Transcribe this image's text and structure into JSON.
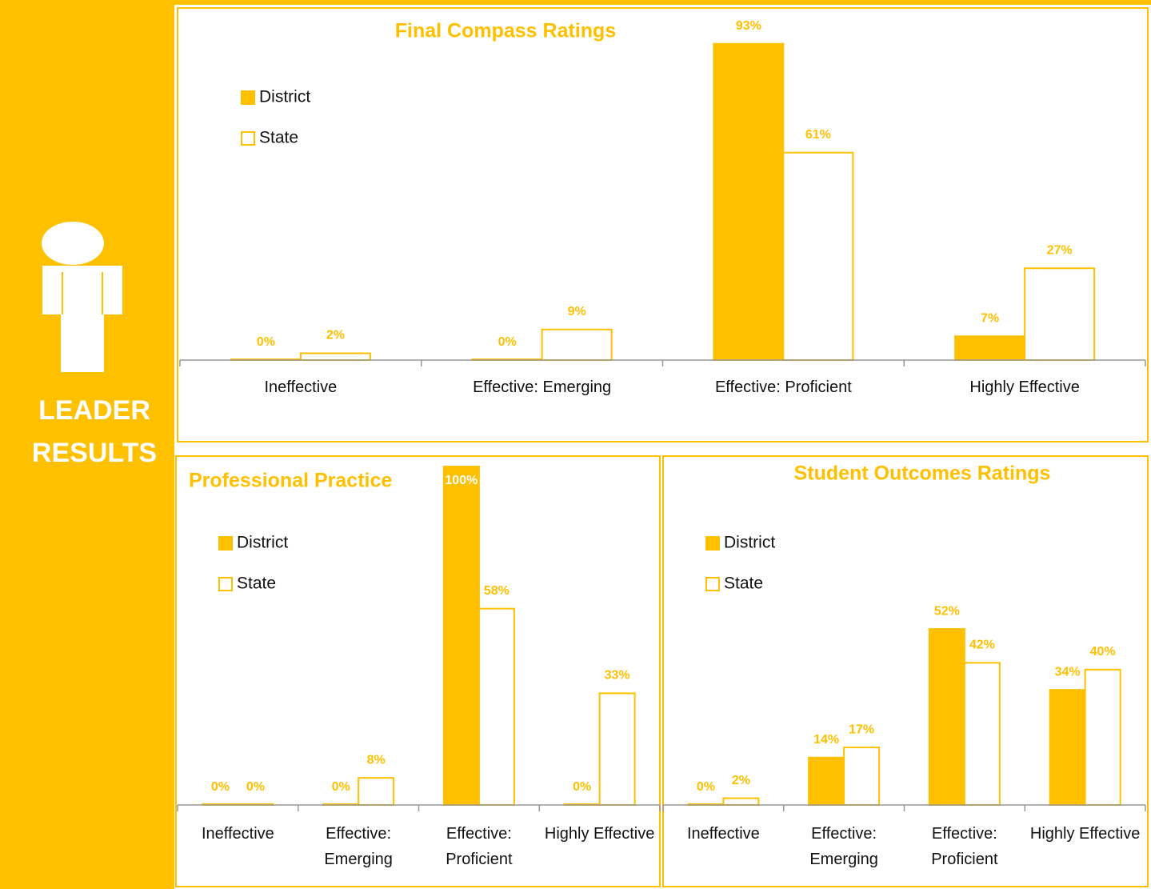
{
  "sidebar": {
    "title_lines": [
      "LEADER",
      "RESULTS"
    ]
  },
  "chart_data": [
    {
      "type": "bar",
      "title": "Final Compass Ratings",
      "categories": [
        "Ineffective",
        "Effective: Emerging",
        "Effective: Proficient",
        "Highly Effective"
      ],
      "series": [
        {
          "name": "District",
          "color": "#FFC000",
          "edgecolor": "#FFC000",
          "values": [
            0,
            0,
            93,
            7
          ],
          "value_labels": [
            "0%",
            "0%",
            "93%",
            "7%"
          ]
        },
        {
          "name": "State",
          "color": "#FFFFFF",
          "edgecolor": "#FFC000",
          "values": [
            2,
            9,
            61,
            27
          ],
          "value_labels": [
            "2%",
            "9%",
            "61%",
            "27%"
          ]
        }
      ],
      "ylim": [
        0,
        100
      ]
    },
    {
      "type": "bar",
      "title": "Professional Practice",
      "categories": [
        "Ineffective",
        "Effective: Emerging",
        "Effective: Proficient",
        "Highly Effective"
      ],
      "series": [
        {
          "name": "District",
          "color": "#FFC000",
          "edgecolor": "#FFC000",
          "values": [
            0,
            0,
            100,
            0
          ],
          "value_labels": [
            "0%",
            "0%",
            "100%",
            "0%"
          ]
        },
        {
          "name": "State",
          "color": "#FFFFFF",
          "edgecolor": "#FFC000",
          "values": [
            0,
            8,
            58,
            33
          ],
          "value_labels": [
            "0%",
            "8%",
            "58%",
            "33%"
          ]
        }
      ],
      "ylim": [
        0,
        100
      ]
    },
    {
      "type": "bar",
      "title": "Student Outcomes Ratings",
      "categories": [
        "Ineffective",
        "Effective: Emerging",
        "Effective: Proficient",
        "Highly Effective"
      ],
      "series": [
        {
          "name": "District",
          "color": "#FFC000",
          "edgecolor": "#FFC000",
          "values": [
            0,
            14,
            52,
            34
          ],
          "value_labels": [
            "0%",
            "14%",
            "52%",
            "34%"
          ]
        },
        {
          "name": "State",
          "color": "#FFFFFF",
          "edgecolor": "#FFC000",
          "values": [
            2,
            17,
            42,
            40
          ],
          "value_labels": [
            "2%",
            "17%",
            "42%",
            "40%"
          ]
        }
      ],
      "ylim": [
        0,
        100
      ]
    }
  ]
}
